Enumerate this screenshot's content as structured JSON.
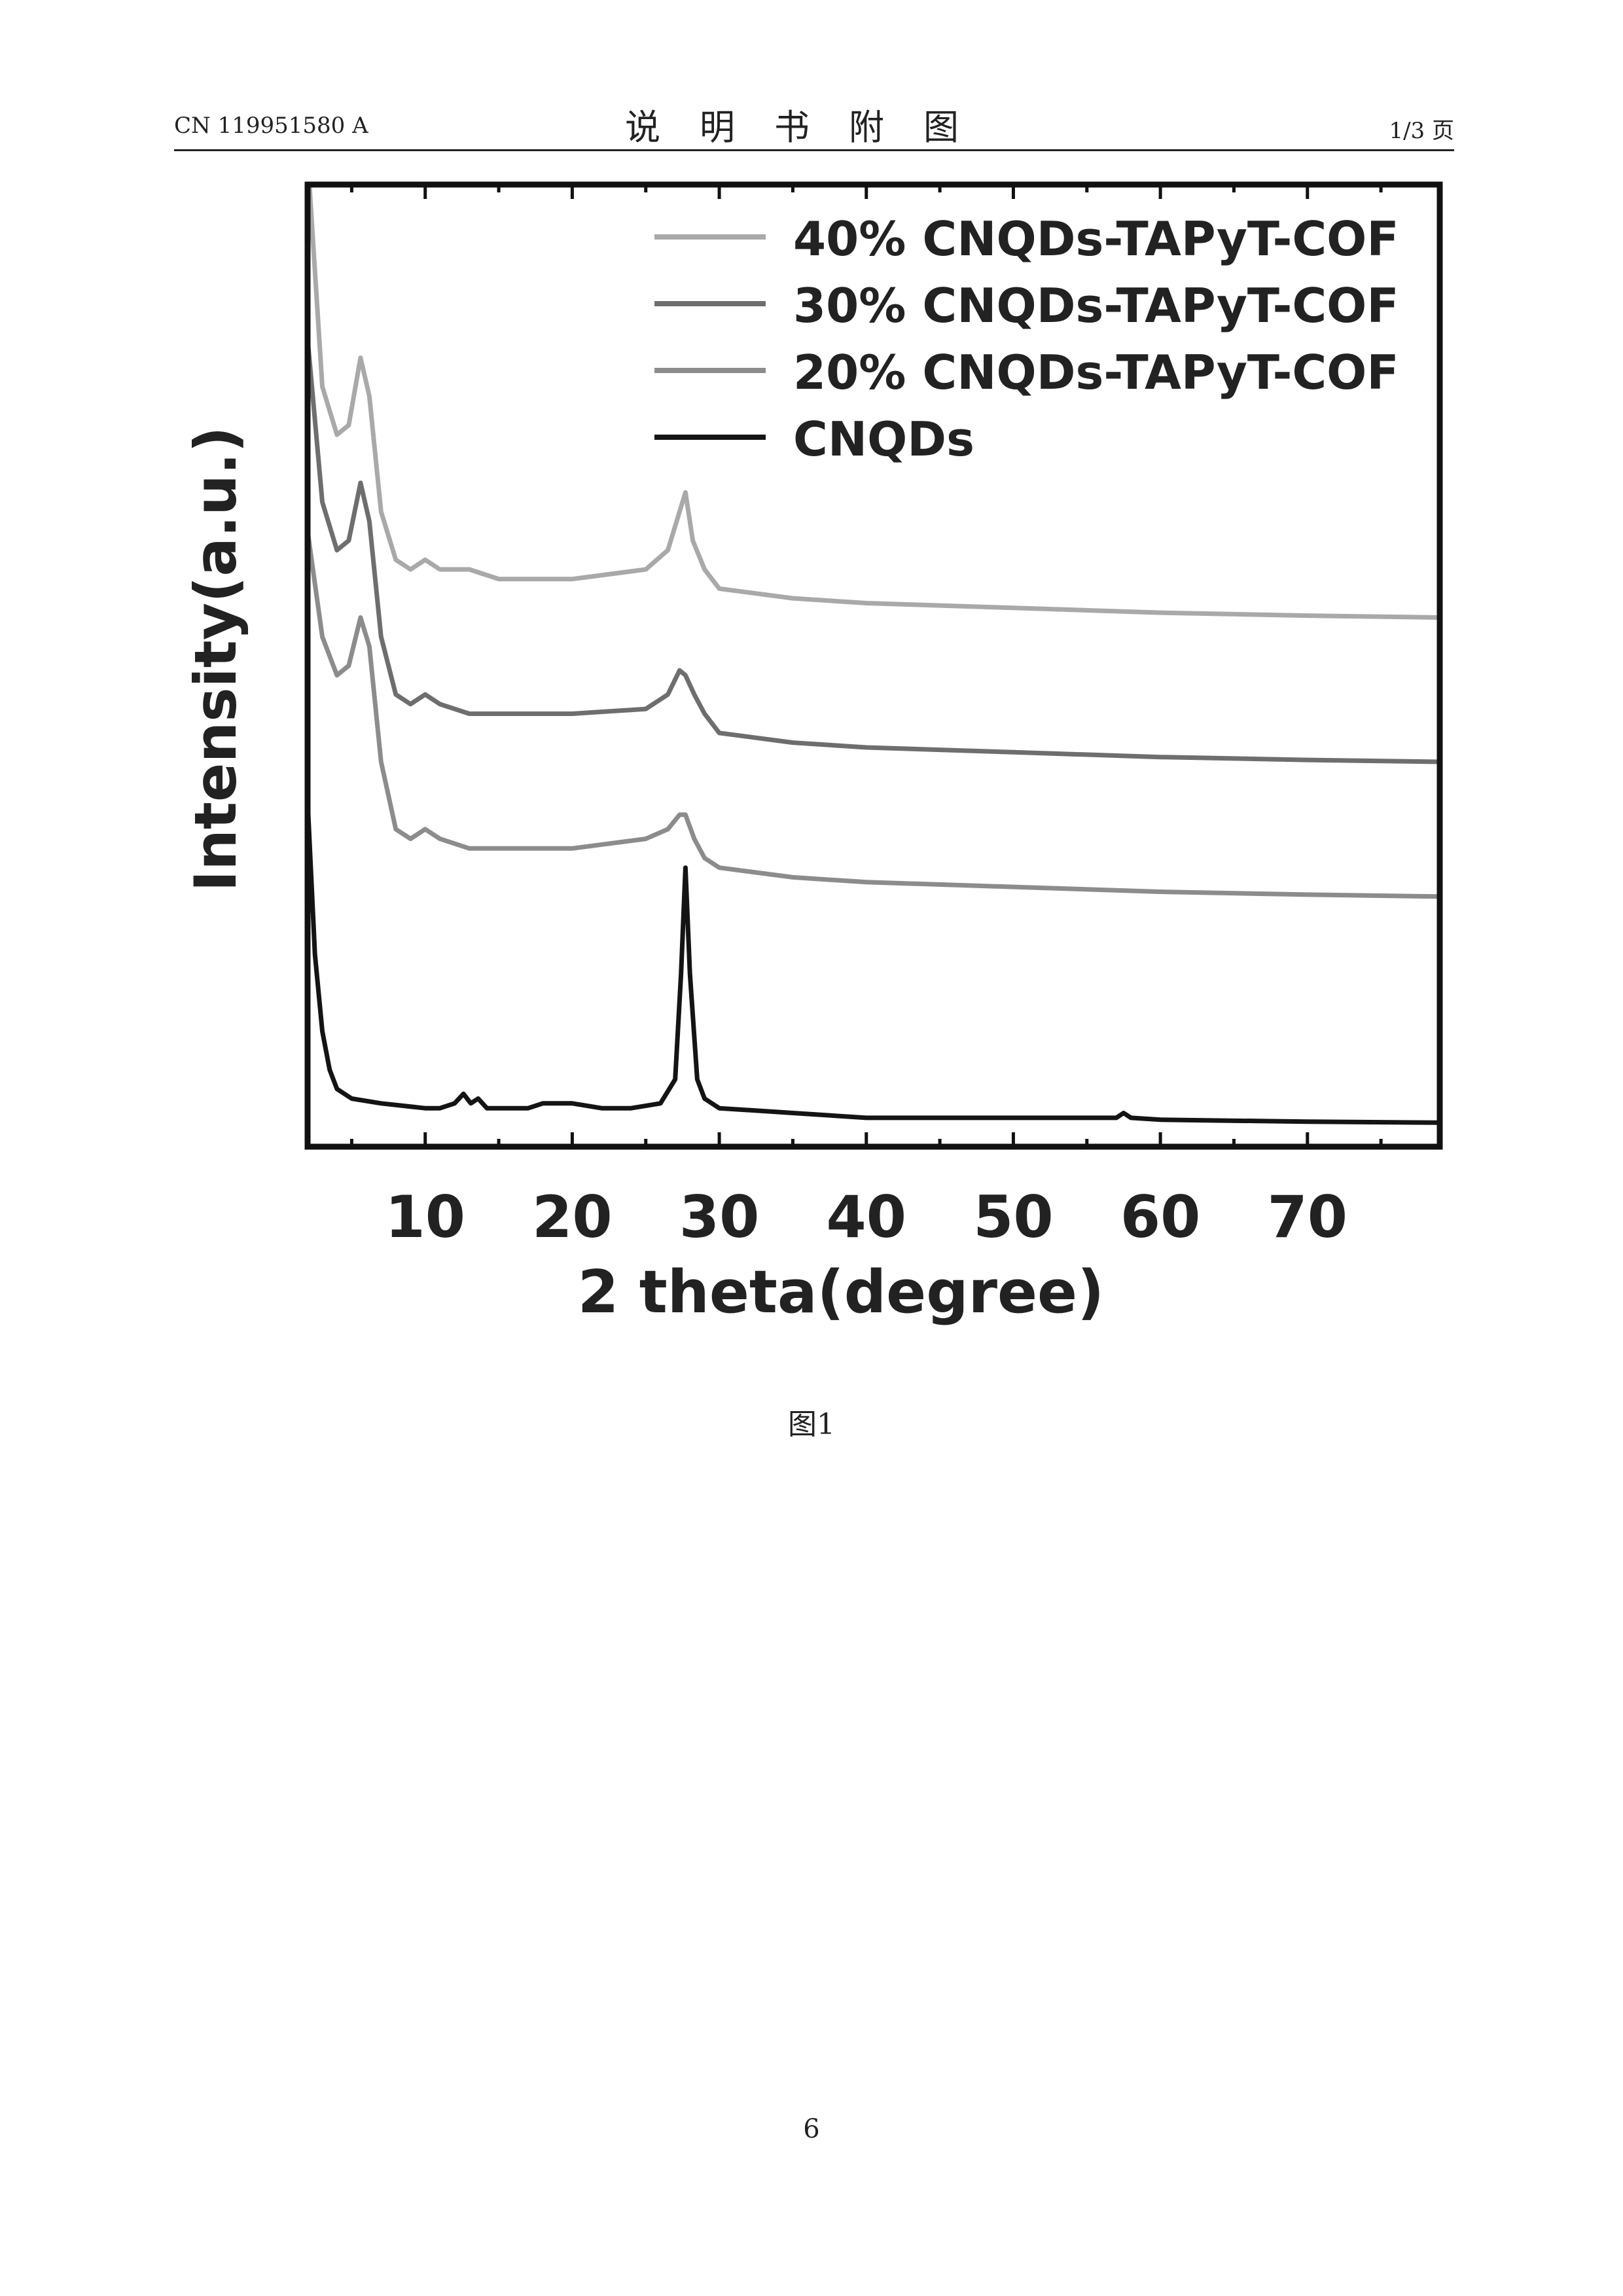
{
  "header": {
    "doc_number": "CN 119951580 A",
    "section_title": "说明书附图",
    "page_of": "1/3 页"
  },
  "chart_data": {
    "type": "line",
    "xlabel": "2 theta(degree)",
    "ylabel": "Intensity(a.u.)",
    "xlim": [
      2,
      79
    ],
    "xticks": [
      10,
      20,
      30,
      40,
      50,
      60,
      70
    ],
    "ylim": [
      0,
      1
    ],
    "y_ticks_shown": false,
    "grid": false,
    "legend_position": "top-right",
    "series": [
      {
        "name": "40% CNQDs-TAPyT-COF",
        "color": "#a9a9a9",
        "points": [
          [
            2,
            1.03
          ],
          [
            3,
            0.79
          ],
          [
            4,
            0.74
          ],
          [
            4.8,
            0.75
          ],
          [
            5.6,
            0.82
          ],
          [
            6.2,
            0.78
          ],
          [
            7,
            0.66
          ],
          [
            8,
            0.61
          ],
          [
            9,
            0.6
          ],
          [
            10,
            0.61
          ],
          [
            11,
            0.6
          ],
          [
            12,
            0.6
          ],
          [
            13,
            0.6
          ],
          [
            15,
            0.59
          ],
          [
            20,
            0.59
          ],
          [
            25,
            0.6
          ],
          [
            26.5,
            0.62
          ],
          [
            27.3,
            0.66
          ],
          [
            27.7,
            0.68
          ],
          [
            28.2,
            0.63
          ],
          [
            29,
            0.6
          ],
          [
            30,
            0.58
          ],
          [
            35,
            0.57
          ],
          [
            40,
            0.565
          ],
          [
            50,
            0.56
          ],
          [
            60,
            0.555
          ],
          [
            70,
            0.552
          ],
          [
            79,
            0.55
          ]
        ]
      },
      {
        "name": "30% CNQDs-TAPyT-COF",
        "color": "#6e6e6e",
        "points": [
          [
            2,
            0.84
          ],
          [
            3,
            0.67
          ],
          [
            4,
            0.62
          ],
          [
            4.8,
            0.63
          ],
          [
            5.6,
            0.69
          ],
          [
            6.2,
            0.65
          ],
          [
            7,
            0.53
          ],
          [
            8,
            0.47
          ],
          [
            9,
            0.46
          ],
          [
            10,
            0.47
          ],
          [
            11,
            0.46
          ],
          [
            13,
            0.45
          ],
          [
            15,
            0.45
          ],
          [
            20,
            0.45
          ],
          [
            25,
            0.455
          ],
          [
            26.5,
            0.47
          ],
          [
            27.3,
            0.495
          ],
          [
            27.7,
            0.49
          ],
          [
            28.3,
            0.47
          ],
          [
            29,
            0.45
          ],
          [
            30,
            0.43
          ],
          [
            35,
            0.42
          ],
          [
            40,
            0.415
          ],
          [
            50,
            0.41
          ],
          [
            60,
            0.405
          ],
          [
            70,
            0.402
          ],
          [
            79,
            0.4
          ]
        ]
      },
      {
        "name": "20% CNQDs-TAPyT-COF",
        "color": "#8c8c8c",
        "points": [
          [
            2,
            0.64
          ],
          [
            3,
            0.53
          ],
          [
            4,
            0.49
          ],
          [
            4.8,
            0.5
          ],
          [
            5.6,
            0.55
          ],
          [
            6.2,
            0.52
          ],
          [
            7,
            0.4
          ],
          [
            8,
            0.33
          ],
          [
            9,
            0.32
          ],
          [
            10,
            0.33
          ],
          [
            11,
            0.32
          ],
          [
            13,
            0.31
          ],
          [
            15,
            0.31
          ],
          [
            20,
            0.31
          ],
          [
            25,
            0.32
          ],
          [
            26.5,
            0.33
          ],
          [
            27.3,
            0.345
          ],
          [
            27.7,
            0.345
          ],
          [
            28.3,
            0.32
          ],
          [
            29,
            0.3
          ],
          [
            30,
            0.29
          ],
          [
            35,
            0.28
          ],
          [
            40,
            0.275
          ],
          [
            50,
            0.27
          ],
          [
            60,
            0.265
          ],
          [
            70,
            0.262
          ],
          [
            79,
            0.26
          ]
        ]
      },
      {
        "name": "CNQDs",
        "color": "#141414",
        "points": [
          [
            2,
            0.36
          ],
          [
            2.5,
            0.2
          ],
          [
            3,
            0.12
          ],
          [
            3.5,
            0.08
          ],
          [
            4,
            0.06
          ],
          [
            5,
            0.05
          ],
          [
            7,
            0.045
          ],
          [
            10,
            0.04
          ],
          [
            11,
            0.04
          ],
          [
            12,
            0.045
          ],
          [
            12.6,
            0.055
          ],
          [
            13.1,
            0.045
          ],
          [
            13.6,
            0.05
          ],
          [
            14.2,
            0.04
          ],
          [
            15,
            0.04
          ],
          [
            17,
            0.04
          ],
          [
            18,
            0.045
          ],
          [
            20,
            0.045
          ],
          [
            22,
            0.04
          ],
          [
            24,
            0.04
          ],
          [
            26,
            0.045
          ],
          [
            27,
            0.07
          ],
          [
            27.4,
            0.18
          ],
          [
            27.7,
            0.29
          ],
          [
            28,
            0.18
          ],
          [
            28.5,
            0.07
          ],
          [
            29,
            0.05
          ],
          [
            30,
            0.04
          ],
          [
            35,
            0.035
          ],
          [
            40,
            0.03
          ],
          [
            50,
            0.03
          ],
          [
            57,
            0.03
          ],
          [
            57.5,
            0.035
          ],
          [
            58,
            0.03
          ],
          [
            60,
            0.028
          ],
          [
            70,
            0.026
          ],
          [
            79,
            0.025
          ]
        ]
      }
    ]
  },
  "caption": "图1",
  "page_number": "6"
}
